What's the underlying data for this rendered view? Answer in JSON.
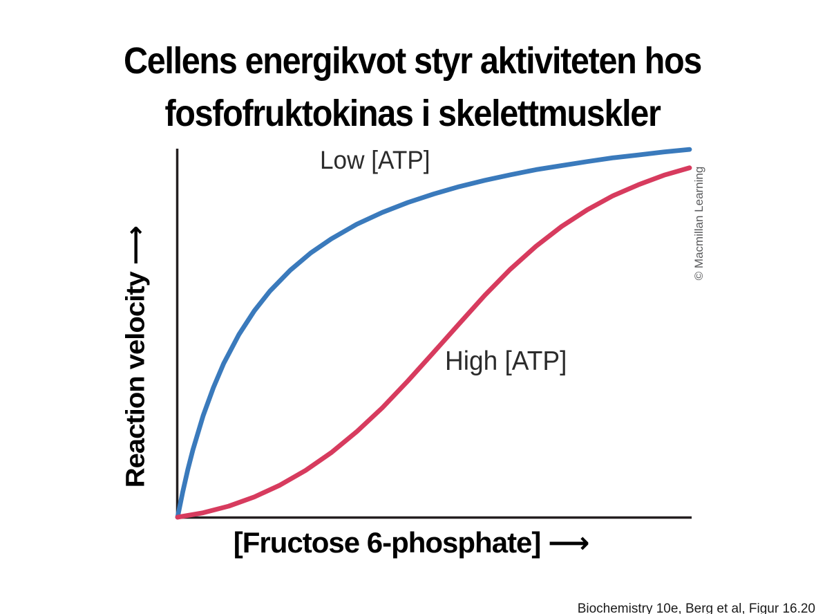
{
  "slide": {
    "title_line1": "Cellens energikvot styr aktiviteten hos",
    "title_line2": "fosfofruktokinas i skelettmuskler",
    "credit": "© Macmillan Learning",
    "attribution_partial": "Biochemistry 10e, Berg et al, Figur 16.20"
  },
  "chart_data": {
    "type": "line",
    "title": "",
    "xlabel": "[Fructose 6-phosphate] ⟶",
    "ylabel": "Reaction velocity ⟶",
    "xlim": [
      0,
      1
    ],
    "ylim": [
      0,
      1
    ],
    "ticks": "none (arbitrary units)",
    "grid": false,
    "legend_position": "inline labels next to curves",
    "axis_color": "#231f20",
    "series": [
      {
        "name": "Low [ATP]",
        "color": "#3a7abc",
        "shape": "hyperbolic (Michaelis-Menten, Km ≈ 0.16 of axis range)",
        "x": [
          0,
          0.01,
          0.02,
          0.03,
          0.05,
          0.07,
          0.09,
          0.12,
          0.15,
          0.18,
          0.22,
          0.26,
          0.3,
          0.35,
          0.4,
          0.45,
          0.5,
          0.55,
          0.6,
          0.65,
          0.7,
          0.75,
          0.8,
          0.85,
          0.9,
          0.95,
          1.0
        ],
        "y": [
          0,
          0.068,
          0.129,
          0.183,
          0.276,
          0.352,
          0.417,
          0.496,
          0.56,
          0.613,
          0.67,
          0.717,
          0.755,
          0.795,
          0.827,
          0.854,
          0.877,
          0.897,
          0.914,
          0.929,
          0.943,
          0.954,
          0.965,
          0.975,
          0.983,
          0.991,
          0.998
        ]
      },
      {
        "name": "High [ATP]",
        "color": "#d73b5e",
        "shape": "sigmoidal (cooperative, inflection ≈ 0.52 of axis range)",
        "x": [
          0,
          0.05,
          0.1,
          0.15,
          0.2,
          0.25,
          0.3,
          0.35,
          0.4,
          0.45,
          0.5,
          0.55,
          0.6,
          0.65,
          0.7,
          0.75,
          0.8,
          0.85,
          0.9,
          0.95,
          1.0
        ],
        "y": [
          0,
          0.012,
          0.03,
          0.055,
          0.087,
          0.127,
          0.175,
          0.232,
          0.297,
          0.37,
          0.447,
          0.525,
          0.602,
          0.673,
          0.735,
          0.789,
          0.834,
          0.872,
          0.902,
          0.928,
          0.948
        ]
      }
    ],
    "annotations": [
      {
        "text": "Low [ATP]",
        "anchor_fraction_x": 0.3,
        "anchor_fraction_y": 0.97
      },
      {
        "text": "High [ATP]",
        "anchor_fraction_x": 0.55,
        "anchor_fraction_y": 0.42
      }
    ]
  }
}
